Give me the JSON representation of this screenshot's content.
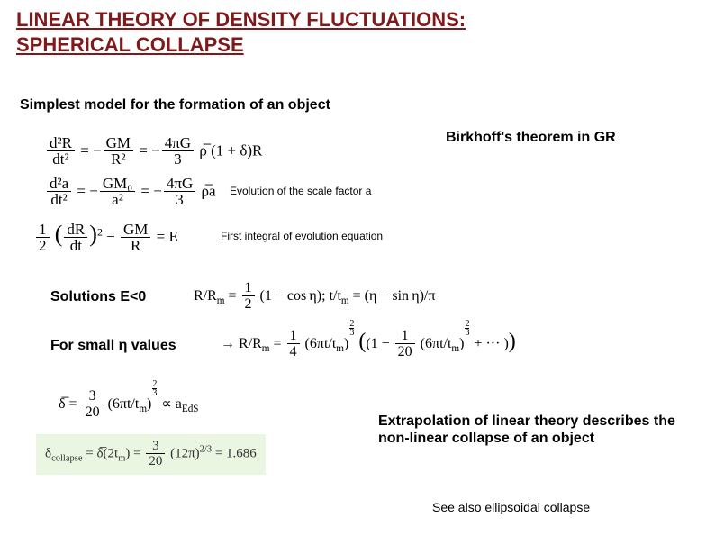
{
  "title_line1": "LINEAR THEORY OF DENSITY FLUCTUATIONS:",
  "title_line2": "SPHERICAL COLLAPSE",
  "subtitle": "Simplest model for the formation of an object",
  "birkhoff": "Birkhoff's theorem in GR",
  "caption_scale": "Evolution of the scale factor a",
  "caption_integral": "First integral of evolution equation",
  "solutions_label": "Solutions E<0",
  "small_eta_label": "For small η values",
  "extrapolation": "Extrapolation of linear theory describes the non-linear collapse of an object",
  "see_also": "See also ellipsoidal collapse",
  "eq": {
    "d2R_lhs_num": "d²R",
    "d2R_lhs_den": "dt²",
    "GM_num": "GM",
    "R2_den": "R²",
    "fourpiG_num": "4πG",
    "three_den": "3",
    "rho_bar": "ρ̅",
    "one_plus_delta": "(1 + δ)R",
    "d2a_num": "d²a",
    "dt2_den": "dt²",
    "GM0_num": "GM₀",
    "a2_den": "a²",
    "rho_bar_a": "ρ̅a",
    "half_num": "1",
    "half_den": "2",
    "dRdt_num": "dR",
    "dRdt_den": "dt",
    "GM_R_num": "GM",
    "R_den": "R",
    "E": "= E",
    "sol_R": "R/R",
    "sol_m": "m",
    "sol_eq": " = ",
    "sol_half_n": "1",
    "sol_half_d": "2",
    "sol_cos": "(1 − cos η);",
    "sol_t": "   t/t",
    "sol_eta": " = (η − sin η)/π",
    "arrow": "→ R/R",
    "quarter_n": "1",
    "quarter_d": "4",
    "sixpi": "(6πt/t",
    "exp_23_n": "2",
    "exp_23_d": "3",
    "bracket_open": "(1 − ",
    "one20_n": "1",
    "one20_d": "20",
    "dots": " + ··· )",
    "delta_bar": "δ̅ = ",
    "three20_n": "3",
    "three20_d": "20",
    "propto": " ∝ a",
    "EdS": "EdS",
    "delta_coll": "δ",
    "coll_sub": "collapse",
    "coll_eq": " = δ̅(2t",
    "coll_m": "m",
    "coll_rhs": ") = ",
    "twelvepi": "(12π)",
    "val": " = 1.686"
  }
}
